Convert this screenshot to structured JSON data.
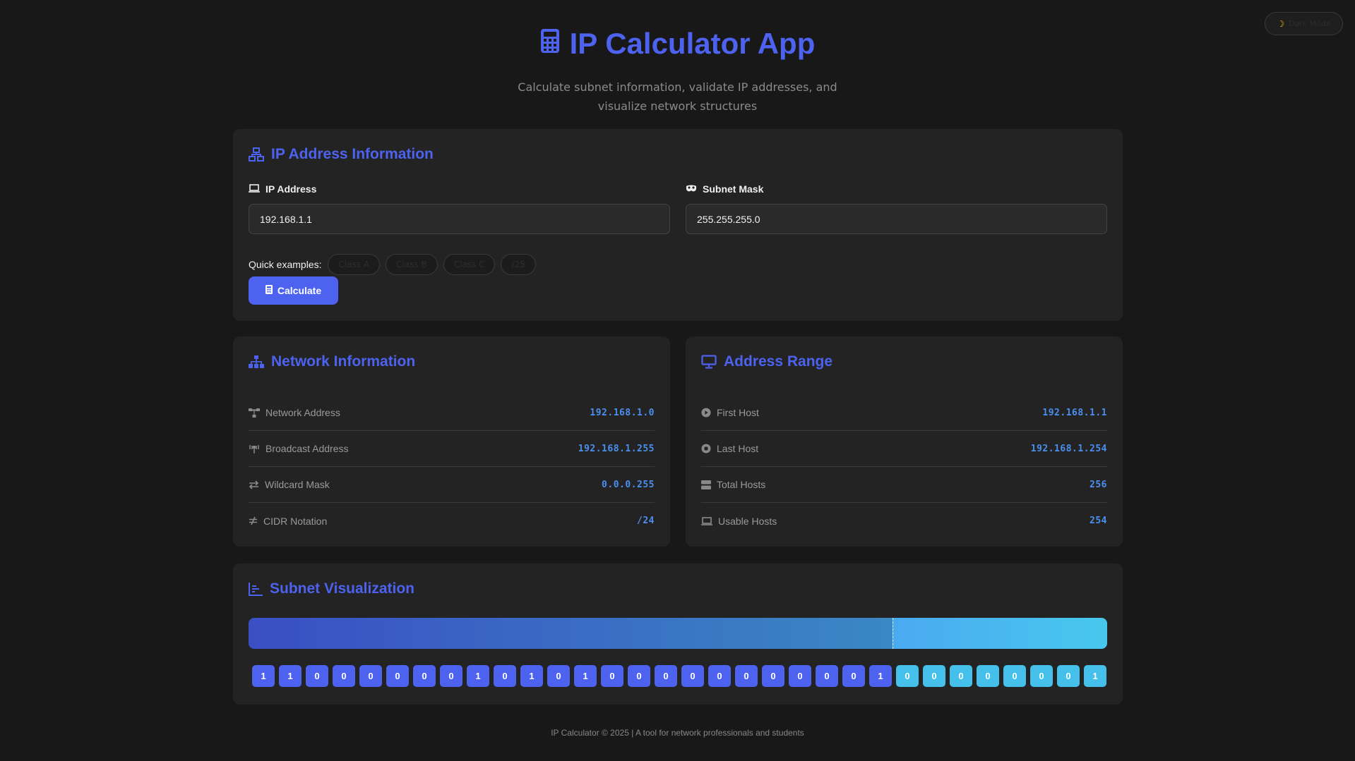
{
  "theme_toggle": {
    "label": "Dark Mode",
    "icon": "moon-icon"
  },
  "header": {
    "title": "IP Calculator App",
    "subtitle": "Calculate subnet information, validate IP addresses, and visualize network structures",
    "accent": "#4d63ef"
  },
  "ip_card": {
    "title": "IP Address Information",
    "ip_label": "IP Address",
    "ip_value": "192.168.1.1",
    "mask_label": "Subnet Mask",
    "mask_value": "255.255.255.0",
    "quick_label": "Quick examples:",
    "quick_examples": [
      "Class A",
      "Class B",
      "Class C",
      "/25"
    ],
    "calculate_label": "Calculate"
  },
  "network_card": {
    "title": "Network Information",
    "rows": [
      {
        "label": "Network Address",
        "value": "192.168.1.0"
      },
      {
        "label": "Broadcast Address",
        "value": "192.168.1.255"
      },
      {
        "label": "Wildcard Mask",
        "value": "0.0.0.255"
      },
      {
        "label": "CIDR Notation",
        "value": "/24"
      }
    ]
  },
  "range_card": {
    "title": "Address Range",
    "rows": [
      {
        "label": "First Host",
        "value": "192.168.1.1"
      },
      {
        "label": "Last Host",
        "value": "192.168.1.254"
      },
      {
        "label": "Total Hosts",
        "value": "256"
      },
      {
        "label": "Usable Hosts",
        "value": "254"
      }
    ]
  },
  "visualization": {
    "title": "Subnet Visualization",
    "network_bits": 24,
    "total_bits": 32,
    "bits": [
      "1",
      "1",
      "0",
      "0",
      "0",
      "0",
      "0",
      "0",
      "1",
      "0",
      "1",
      "0",
      "1",
      "0",
      "0",
      "0",
      "0",
      "0",
      "0",
      "0",
      "0",
      "0",
      "0",
      "1",
      "0",
      "0",
      "0",
      "0",
      "0",
      "0",
      "0",
      "1"
    ],
    "network_color": "#4d63ef",
    "host_color": "#45c0ea"
  },
  "footer": {
    "text": "IP Calculator © 2025 | A tool for network professionals and students"
  }
}
